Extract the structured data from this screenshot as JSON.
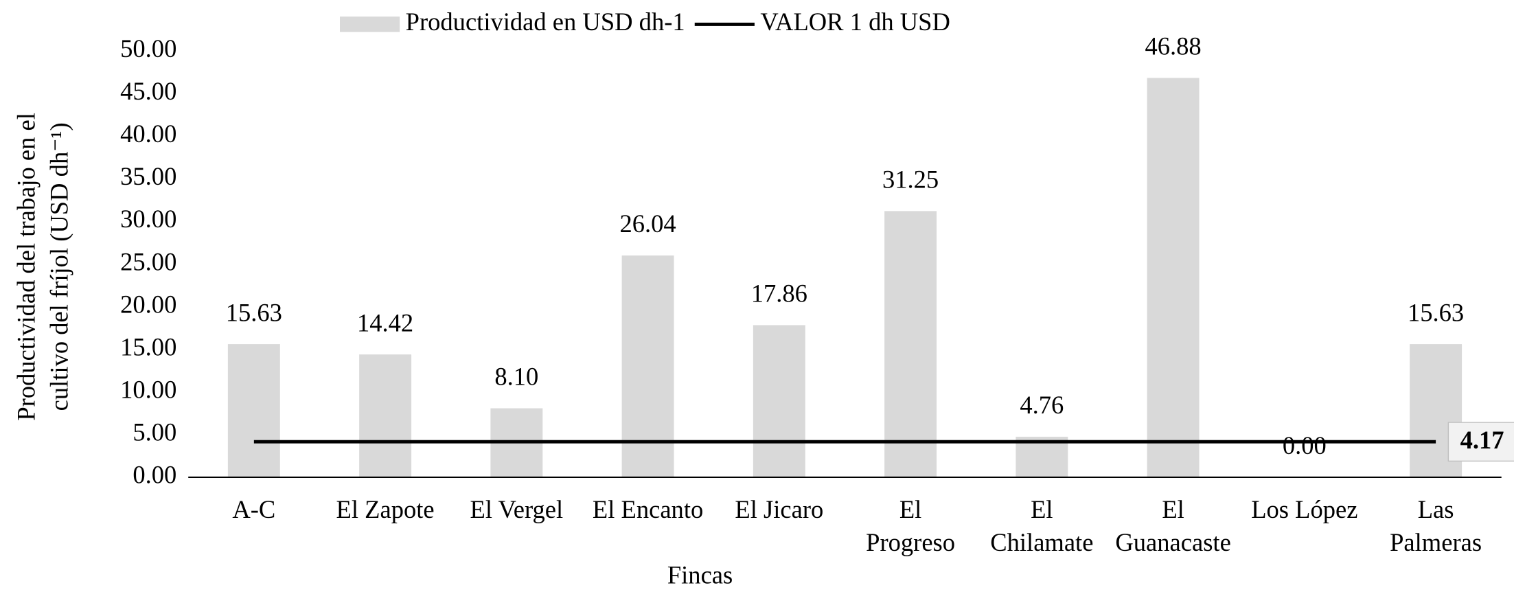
{
  "chart_data": {
    "type": "bar",
    "x_label": "Fincas",
    "y_label": [
      "Productividad  del trabajo en el",
      "cultivo del fríjol (USD dh⁻¹)"
    ],
    "categories": [
      [
        "A-C"
      ],
      [
        "El Zapote"
      ],
      [
        "El Vergel"
      ],
      [
        "El Encanto"
      ],
      [
        "El Jicaro"
      ],
      [
        "El",
        "Progreso"
      ],
      [
        "El",
        "Chilamate"
      ],
      [
        "El",
        "Guanacaste"
      ],
      [
        "Los López"
      ],
      [
        "Las",
        "Palmeras"
      ]
    ],
    "series": [
      {
        "name": "Productividad en USD dh-1",
        "color": "#d9d9d9",
        "values": [
          15.63,
          14.42,
          8.1,
          26.04,
          17.86,
          31.25,
          4.76,
          46.88,
          0,
          15.63
        ],
        "value_labels": [
          "15.63",
          "14.42",
          "8.10",
          "26.04",
          "17.86",
          "31.25",
          "4.76",
          "46.88",
          "0.00",
          "15.63"
        ]
      },
      {
        "name": "VALOR 1 dh  USD",
        "color": "#000000",
        "type": "line",
        "values": [
          4.17,
          4.17,
          4.17,
          4.17,
          4.17,
          4.17,
          4.17,
          4.17,
          4.17,
          4.17
        ],
        "value_labels": [
          null,
          null,
          null,
          null,
          null,
          null,
          null,
          null,
          null,
          "4.17"
        ]
      }
    ],
    "ylim": [
      0,
      50
    ],
    "yticks": [
      {
        "value": 0,
        "label": "0.00"
      },
      {
        "value": 5,
        "label": "5.00"
      },
      {
        "value": 10,
        "label": "10.00"
      },
      {
        "value": 15,
        "label": "15.00"
      },
      {
        "value": 20,
        "label": "20.00"
      },
      {
        "value": 25,
        "label": "25.00"
      },
      {
        "value": 30,
        "label": "30.00"
      },
      {
        "value": 35,
        "label": "35.00"
      },
      {
        "value": 40,
        "label": "40.00"
      },
      {
        "value": 45,
        "label": "45.00"
      },
      {
        "value": 50,
        "label": "50.00"
      }
    ],
    "grid": false
  }
}
